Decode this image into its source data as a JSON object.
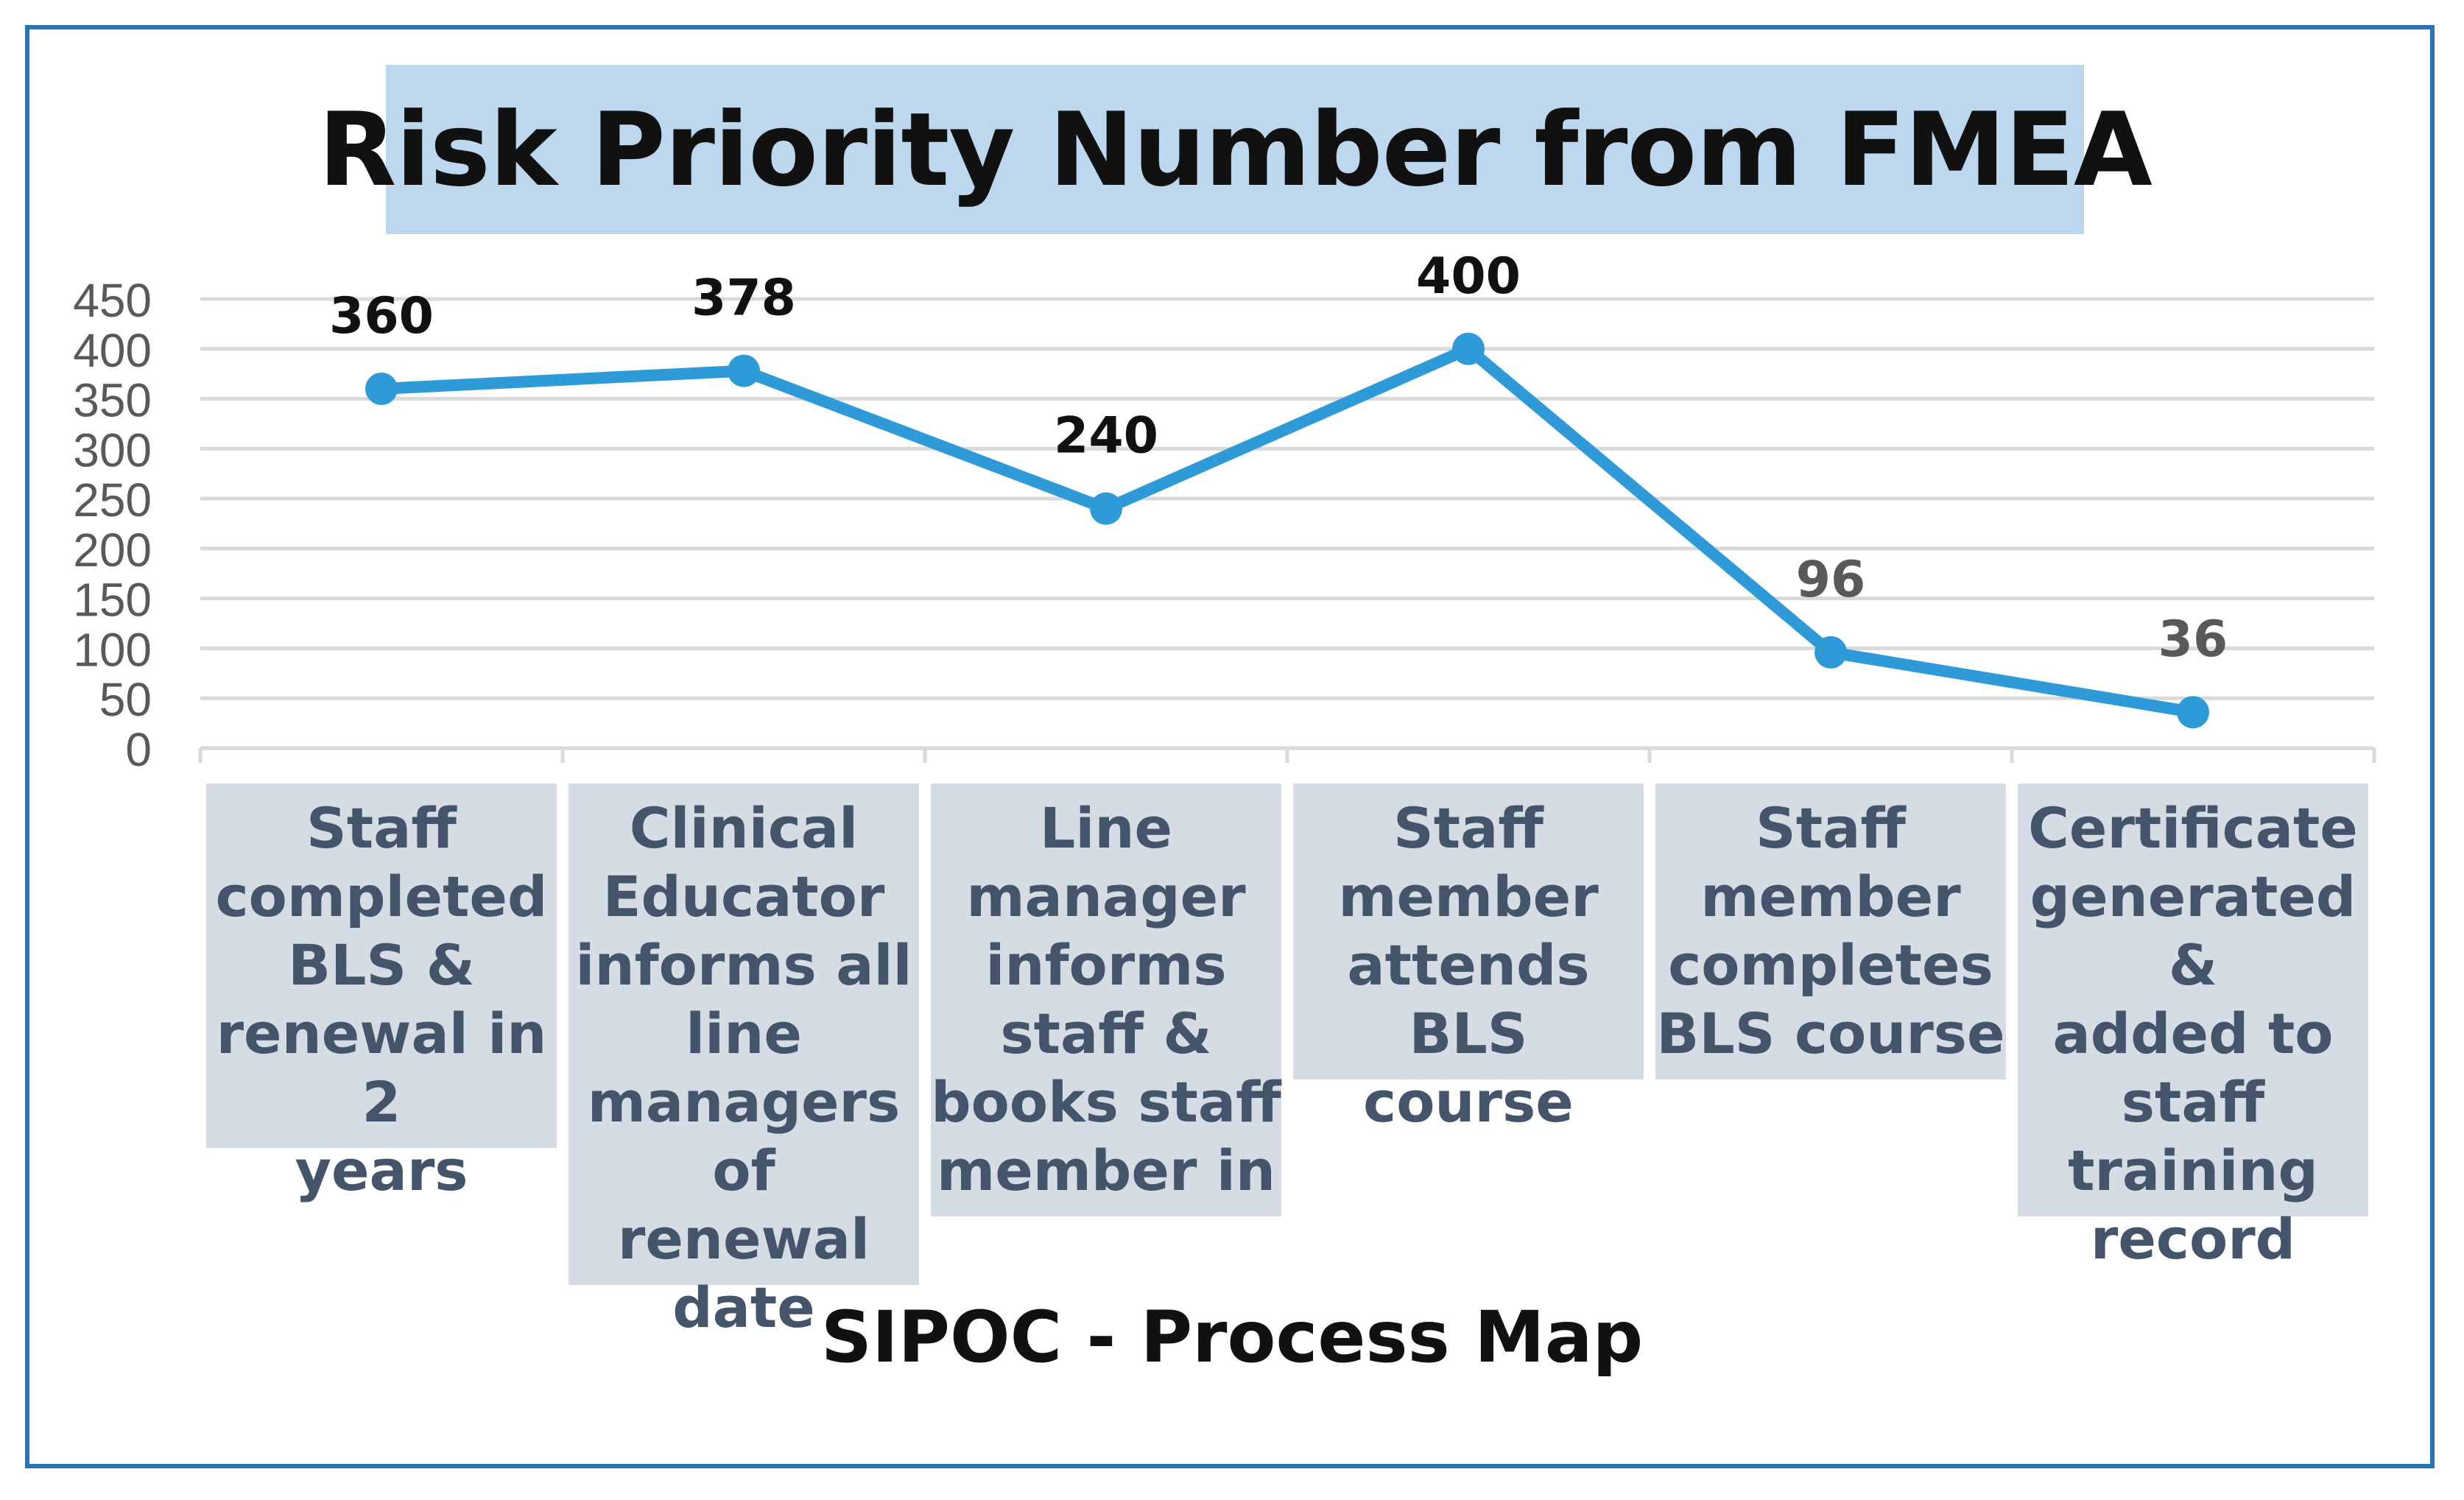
{
  "chart_data": {
    "type": "line",
    "title": "Risk Priority Number from FMEA",
    "xlabel": "SIPOC - Process Map",
    "ylabel": "",
    "ylim": [
      0,
      450
    ],
    "yticks": [
      0,
      50,
      100,
      150,
      200,
      250,
      300,
      350,
      400,
      450
    ],
    "grid": true,
    "legend": "none",
    "categories": [
      "Staff completed BLS & renewal in 2 years",
      "Clinical Educator informs all line managers of renewal date",
      "Line manager informs staff & books staff member in",
      "Staff member attends BLS course",
      "Staff member completes BLS course",
      "Certificate generated & added to staff training record"
    ],
    "category_lines": [
      [
        "Staff",
        "completed",
        "BLS &",
        "renewal in 2",
        "years"
      ],
      [
        "Clinical",
        "Educator",
        "informs all",
        "line",
        "managers of",
        "renewal",
        "date"
      ],
      [
        "Line",
        "manager",
        "informs",
        "staff &",
        "books staff",
        "member in"
      ],
      [
        "Staff",
        "member",
        "attends BLS",
        "course"
      ],
      [
        "Staff",
        "member",
        "completes",
        "BLS course"
      ],
      [
        "Certificate",
        "generated &",
        "added to",
        "staff",
        "training",
        "record"
      ]
    ],
    "values": [
      360,
      378,
      240,
      400,
      96,
      36
    ],
    "data_labels": [
      "360",
      "378",
      "240",
      "400",
      "96",
      "36"
    ],
    "colors": {
      "line": "#2e9bd8",
      "title_bg": "#bdd7ee",
      "category_bg": "#d6dce4",
      "category_text": "#44546a",
      "frame": "#2b73b7",
      "grid": "#d9d9d9",
      "label_dark": "#111111",
      "label_gray": "#595959"
    }
  }
}
